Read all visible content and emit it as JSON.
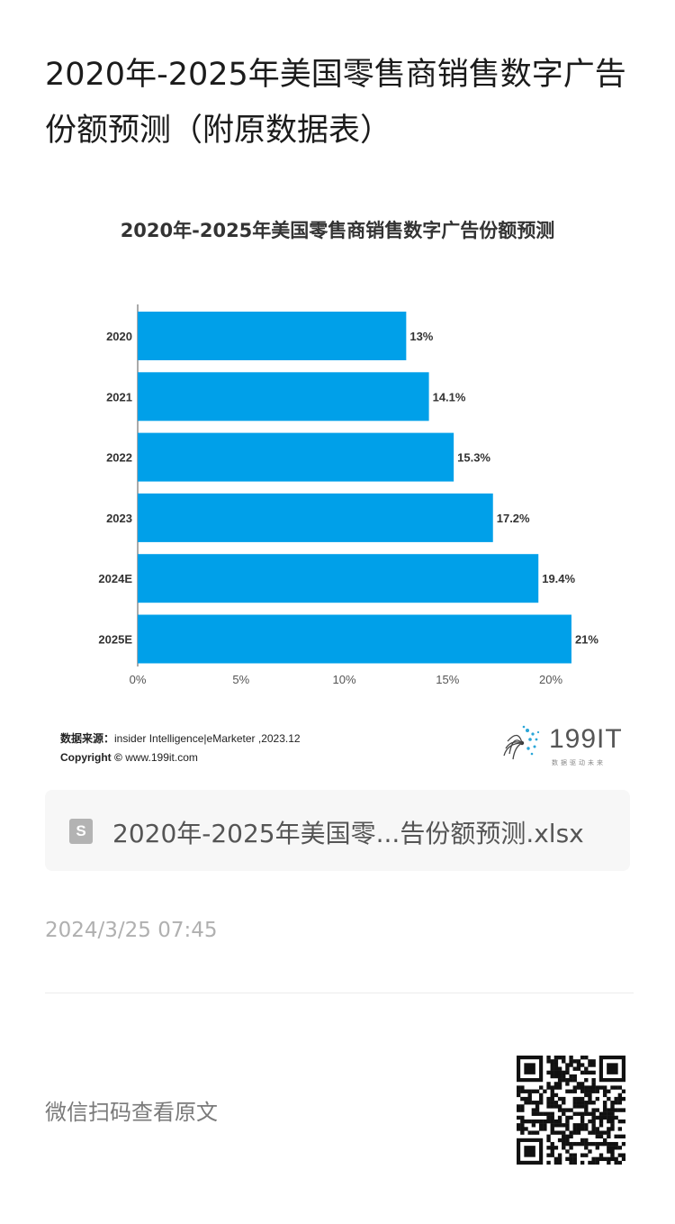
{
  "article": {
    "title": "2020年-2025年美国零售商销售数字广告份额预测（附原数据表）"
  },
  "chart_data": {
    "type": "bar",
    "orientation": "horizontal",
    "title": "2020年-2025年美国零售商销售数字广告份额预测",
    "categories": [
      "2020",
      "2021",
      "2022",
      "2023",
      "2024E",
      "2025E"
    ],
    "values": [
      13,
      14.1,
      15.3,
      17.2,
      19.4,
      21
    ],
    "value_labels": [
      "13%",
      "14.1%",
      "15.3%",
      "17.2%",
      "19.4%",
      "21%"
    ],
    "xlim": [
      0,
      21
    ],
    "x_ticks": [
      0,
      5,
      10,
      15,
      20
    ],
    "x_tick_labels": [
      "0%",
      "5%",
      "10%",
      "15%",
      "20%"
    ],
    "xlabel": "",
    "ylabel": "",
    "bar_color": "#00a0e9",
    "grid": false
  },
  "source": {
    "label": "数据来源：",
    "text": "insider Intelligence|eMarketer ,2023.12",
    "copyright_label": "Copyright ©",
    "copyright_text": "www.199it.com"
  },
  "brand": {
    "name": "199IT",
    "tagline": "数据驱动未来"
  },
  "attachment": {
    "icon": "spreadsheet-file-icon",
    "icon_letter": "S",
    "file_name": "2020年-2025年美国零...告份额预测.xlsx"
  },
  "meta": {
    "timestamp": "2024/3/25 07:45",
    "scan_text": "微信扫码查看原文",
    "qr_icon": "qr-code-icon"
  },
  "colors": {
    "bar": "#00a0e9",
    "text_dark": "#1b1b1b",
    "text_muted": "#b0b0b0",
    "card_bg": "#f7f7f7"
  }
}
